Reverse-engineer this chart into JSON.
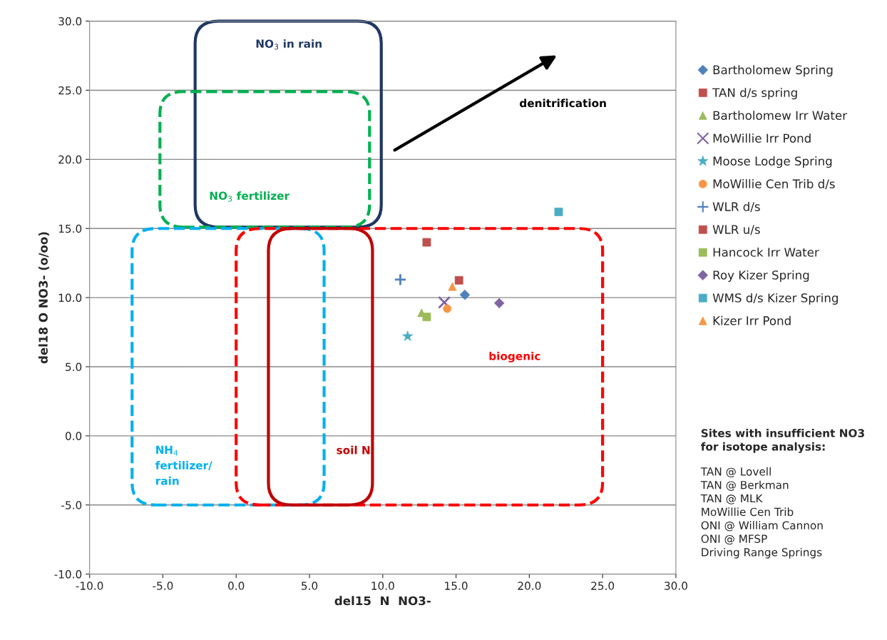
{
  "chart_data": {
    "type": "scatter",
    "xlabel": "del15  N  NO3-",
    "ylabel": "del18 O NO3- (o/oo)",
    "xlim": [
      -10,
      30
    ],
    "ylim": [
      -10,
      30
    ],
    "xticks": [
      {
        "value": -10,
        "label": "-10.0"
      },
      {
        "value": -5,
        "label": "-5.0"
      },
      {
        "value": 0,
        "label": "0.0"
      },
      {
        "value": 5,
        "label": "5.0"
      },
      {
        "value": 10,
        "label": "10.0"
      },
      {
        "value": 15,
        "label": "15.0"
      },
      {
        "value": 20,
        "label": "20.0"
      },
      {
        "value": 25,
        "label": "25.0"
      },
      {
        "value": 30,
        "label": "30.0"
      }
    ],
    "yticks": [
      {
        "value": -10,
        "label": "-10.0"
      },
      {
        "value": -5,
        "label": "-5.0"
      },
      {
        "value": 0,
        "label": "0.0"
      },
      {
        "value": 5,
        "label": "5.0"
      },
      {
        "value": 10,
        "label": "10.0"
      },
      {
        "value": 15,
        "label": "15.0"
      },
      {
        "value": 20,
        "label": "20.0"
      },
      {
        "value": 25,
        "label": "25.0"
      },
      {
        "value": 30,
        "label": "30.0"
      }
    ],
    "grid": "y",
    "legend": "right",
    "series": [
      {
        "name": "Bartholomew Spring",
        "color": "#4f81bd",
        "marker": "diamond",
        "x": [
          15.6
        ],
        "values": [
          10.2
        ]
      },
      {
        "name": "TAN d/s spring",
        "color": "#c0504d",
        "marker": "square",
        "x": [
          15.2
        ],
        "values": [
          11.25
        ]
      },
      {
        "name": "Bartholomew Irr Water",
        "color": "#9bbb59",
        "marker": "triangle",
        "x": [
          12.65
        ],
        "values": [
          8.9
        ]
      },
      {
        "name": "MoWillie Irr Pond",
        "color": "#8064a2",
        "marker": "cross",
        "x": [
          14.2
        ],
        "values": [
          9.65
        ]
      },
      {
        "name": "Moose Lodge Spring",
        "color": "#4bacc6",
        "marker": "star",
        "x": [
          11.7
        ],
        "values": [
          7.2
        ]
      },
      {
        "name": "MoWillie Cen Trib d/s",
        "color": "#f79646",
        "marker": "circle",
        "x": [
          14.4
        ],
        "values": [
          9.2
        ]
      },
      {
        "name": "WLR d/s",
        "color": "#4f81bd",
        "x": [
          11.2
        ],
        "values": [
          11.3
        ]
      },
      {
        "name": "WLR u/s",
        "color": "#c0504d",
        "marker": "square",
        "x": [
          13.0
        ],
        "values": [
          14.0
        ]
      },
      {
        "name": "Hancock Irr Water",
        "color": "#9bbb59",
        "marker": "square",
        "x": [
          13.0
        ],
        "values": [
          8.6
        ]
      },
      {
        "name": "Roy Kizer Spring",
        "color": "#8064a2",
        "marker": "diamond",
        "x": [
          17.95
        ],
        "values": [
          9.6
        ]
      },
      {
        "name": "WMS d/s Kizer Spring",
        "color": "#4bacc6",
        "marker": "square",
        "x": [
          22.0
        ],
        "values": [
          16.2
        ]
      },
      {
        "name": "Kizer Irr Pond",
        "color": "#f79646",
        "marker": "triangle",
        "x": [
          14.75
        ],
        "values": [
          10.8
        ]
      }
    ],
    "annotations": [
      "NO$_{3}$ in rain",
      "NO$_{3}$ fertilizer",
      "NH$_{4}$\nfertilizer/\nrain",
      "soil N",
      "biogenic",
      "denitrification",
      "Sites with insufficient NO3\nfor isotope analysis:",
      "TAN @ Lovell\nTAN @ Berkman\nTAN @ MLK\nMoWillie Cen Trib\nONI @ William Cannon\nONI @ MFSP\nDriving Range Springs"
    ]
  }
}
